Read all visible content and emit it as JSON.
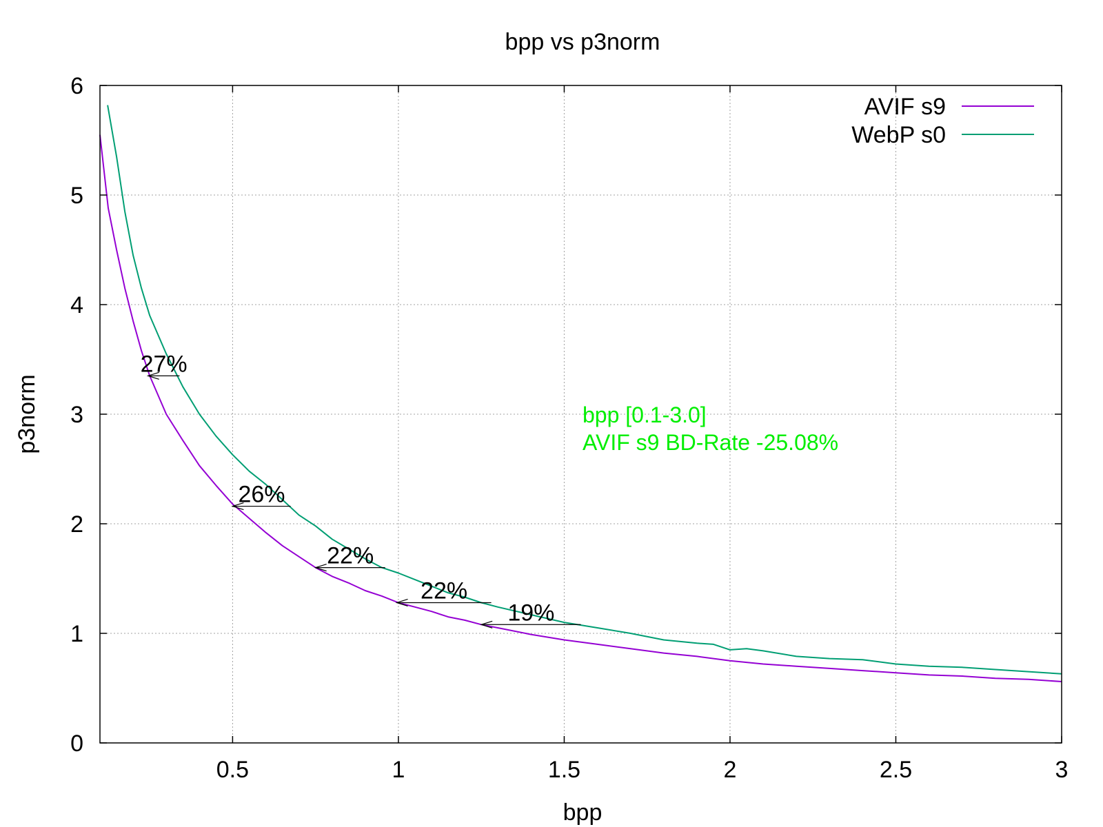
{
  "chart_data": {
    "type": "line",
    "title": "bpp vs p3norm",
    "xlabel": "bpp",
    "ylabel": "p3norm",
    "xlim": [
      0.1,
      3.0
    ],
    "ylim": [
      0,
      6
    ],
    "x_ticks": [
      {
        "value": 0.5,
        "label": "0.5"
      },
      {
        "value": 1,
        "label": "1"
      },
      {
        "value": 1.5,
        "label": "1.5"
      },
      {
        "value": 2,
        "label": "2"
      },
      {
        "value": 2.5,
        "label": "2.5"
      },
      {
        "value": 3,
        "label": "3"
      }
    ],
    "y_ticks": [
      {
        "value": 0,
        "label": "0"
      },
      {
        "value": 1,
        "label": "1"
      },
      {
        "value": 2,
        "label": "2"
      },
      {
        "value": 3,
        "label": "3"
      },
      {
        "value": 4,
        "label": "4"
      },
      {
        "value": 5,
        "label": "5"
      },
      {
        "value": 6,
        "label": "6"
      }
    ],
    "grid": true,
    "legend_position": "top-right",
    "series": [
      {
        "name": "AVIF s9",
        "color": "#9400d3",
        "points": [
          [
            0.1,
            5.55
          ],
          [
            0.125,
            4.88
          ],
          [
            0.15,
            4.5
          ],
          [
            0.175,
            4.15
          ],
          [
            0.2,
            3.85
          ],
          [
            0.225,
            3.58
          ],
          [
            0.25,
            3.35
          ],
          [
            0.3,
            3.0
          ],
          [
            0.35,
            2.76
          ],
          [
            0.4,
            2.53
          ],
          [
            0.45,
            2.35
          ],
          [
            0.5,
            2.18
          ],
          [
            0.55,
            2.05
          ],
          [
            0.6,
            1.92
          ],
          [
            0.65,
            1.8
          ],
          [
            0.7,
            1.7
          ],
          [
            0.75,
            1.6
          ],
          [
            0.8,
            1.52
          ],
          [
            0.85,
            1.46
          ],
          [
            0.9,
            1.39
          ],
          [
            0.95,
            1.34
          ],
          [
            1.0,
            1.28
          ],
          [
            1.05,
            1.24
          ],
          [
            1.1,
            1.2
          ],
          [
            1.15,
            1.15
          ],
          [
            1.2,
            1.12
          ],
          [
            1.25,
            1.08
          ],
          [
            1.3,
            1.05
          ],
          [
            1.4,
            0.99
          ],
          [
            1.5,
            0.94
          ],
          [
            1.6,
            0.9
          ],
          [
            1.7,
            0.86
          ],
          [
            1.8,
            0.82
          ],
          [
            1.9,
            0.79
          ],
          [
            2.0,
            0.75
          ],
          [
            2.1,
            0.72
          ],
          [
            2.2,
            0.7
          ],
          [
            2.3,
            0.68
          ],
          [
            2.4,
            0.66
          ],
          [
            2.5,
            0.64
          ],
          [
            2.6,
            0.62
          ],
          [
            2.7,
            0.61
          ],
          [
            2.8,
            0.59
          ],
          [
            2.9,
            0.58
          ],
          [
            3.0,
            0.56
          ]
        ]
      },
      {
        "name": "WebP s0",
        "color": "#009e73",
        "points": [
          [
            0.123,
            5.82
          ],
          [
            0.15,
            5.35
          ],
          [
            0.175,
            4.85
          ],
          [
            0.2,
            4.45
          ],
          [
            0.225,
            4.15
          ],
          [
            0.25,
            3.9
          ],
          [
            0.3,
            3.55
          ],
          [
            0.35,
            3.25
          ],
          [
            0.4,
            3.0
          ],
          [
            0.45,
            2.8
          ],
          [
            0.5,
            2.63
          ],
          [
            0.55,
            2.48
          ],
          [
            0.6,
            2.36
          ],
          [
            0.65,
            2.22
          ],
          [
            0.7,
            2.08
          ],
          [
            0.75,
            1.98
          ],
          [
            0.8,
            1.86
          ],
          [
            0.85,
            1.77
          ],
          [
            0.9,
            1.68
          ],
          [
            0.95,
            1.6
          ],
          [
            1.0,
            1.55
          ],
          [
            1.05,
            1.49
          ],
          [
            1.1,
            1.43
          ],
          [
            1.15,
            1.37
          ],
          [
            1.2,
            1.33
          ],
          [
            1.25,
            1.28
          ],
          [
            1.3,
            1.24
          ],
          [
            1.4,
            1.17
          ],
          [
            1.5,
            1.1
          ],
          [
            1.6,
            1.05
          ],
          [
            1.7,
            1.0
          ],
          [
            1.8,
            0.94
          ],
          [
            1.9,
            0.91
          ],
          [
            1.95,
            0.9
          ],
          [
            2.0,
            0.85
          ],
          [
            2.05,
            0.86
          ],
          [
            2.1,
            0.84
          ],
          [
            2.2,
            0.79
          ],
          [
            2.3,
            0.77
          ],
          [
            2.4,
            0.76
          ],
          [
            2.5,
            0.72
          ],
          [
            2.6,
            0.7
          ],
          [
            2.7,
            0.69
          ],
          [
            2.8,
            0.67
          ],
          [
            2.9,
            0.65
          ],
          [
            3.0,
            0.63
          ]
        ]
      }
    ],
    "annotations": [
      {
        "label": "27%",
        "y": 3.35,
        "from_x": 0.34,
        "to_x": 0.245
      },
      {
        "label": "26%",
        "y": 2.16,
        "from_x": 0.675,
        "to_x": 0.5
      },
      {
        "label": "22%",
        "y": 1.6,
        "from_x": 0.96,
        "to_x": 0.75
      },
      {
        "label": "22%",
        "y": 1.28,
        "from_x": 1.28,
        "to_x": 0.995
      },
      {
        "label": "19%",
        "y": 1.08,
        "from_x": 1.55,
        "to_x": 1.25
      }
    ],
    "note": {
      "lines": [
        "bpp [0.1-3.0]",
        "AVIF s9 BD-Rate -25.08%"
      ],
      "color": "#00ee00"
    }
  }
}
